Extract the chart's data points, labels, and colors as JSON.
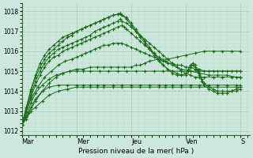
{
  "title": "",
  "xlabel": "Pression niveau de la mer( hPa )",
  "ylim": [
    1011.8,
    1018.4
  ],
  "xlim": [
    0,
    100
  ],
  "yticks": [
    1012,
    1013,
    1014,
    1015,
    1016,
    1017,
    1018
  ],
  "xtick_positions": [
    0,
    24,
    48,
    72,
    96
  ],
  "xtick_labels": [
    "Mar",
    "Mer",
    "Jeu",
    "Ven",
    "S"
  ],
  "bg_color": "#cce8dc",
  "grid_color_major": "#aaccb8",
  "grid_color_minor": "#bdd8c8",
  "line_color": "#1a6b1a",
  "series": [
    {
      "x": [
        0,
        2,
        4,
        6,
        9,
        12,
        16,
        20,
        24,
        27,
        30,
        33,
        36,
        40,
        44,
        48,
        52,
        56,
        60,
        63,
        66,
        70,
        74,
        78,
        82,
        86,
        90,
        94,
        96
      ],
      "y": [
        1012.3,
        1012.6,
        1013.0,
        1013.2,
        1013.5,
        1013.8,
        1014.0,
        1014.1,
        1014.2,
        1014.2,
        1014.2,
        1014.2,
        1014.2,
        1014.2,
        1014.2,
        1014.2,
        1014.2,
        1014.2,
        1014.2,
        1014.2,
        1014.2,
        1014.2,
        1014.2,
        1014.2,
        1014.2,
        1014.2,
        1014.2,
        1014.2,
        1014.2
      ]
    },
    {
      "x": [
        0,
        2,
        4,
        6,
        9,
        12,
        16,
        20,
        24,
        27,
        30,
        33,
        36,
        40,
        44,
        48,
        52,
        56,
        60,
        63,
        66,
        70,
        74,
        78,
        82,
        86,
        90,
        94,
        96
      ],
      "y": [
        1012.3,
        1012.7,
        1013.2,
        1013.6,
        1014.0,
        1014.2,
        1014.3,
        1014.3,
        1014.3,
        1014.3,
        1014.3,
        1014.3,
        1014.3,
        1014.3,
        1014.3,
        1014.3,
        1014.3,
        1014.3,
        1014.3,
        1014.3,
        1014.3,
        1014.3,
        1014.3,
        1014.3,
        1014.3,
        1014.3,
        1014.3,
        1014.3,
        1014.3
      ]
    },
    {
      "x": [
        0,
        2,
        4,
        6,
        9,
        12,
        15,
        18,
        21,
        24,
        27,
        30,
        34,
        38,
        42,
        46,
        50,
        54,
        58,
        62,
        66,
        70,
        74,
        78,
        82,
        86,
        90,
        94,
        96
      ],
      "y": [
        1012.3,
        1012.8,
        1013.4,
        1013.9,
        1014.3,
        1014.6,
        1014.8,
        1014.9,
        1015.0,
        1015.0,
        1015.0,
        1015.0,
        1015.0,
        1015.0,
        1015.0,
        1015.0,
        1015.0,
        1015.0,
        1015.0,
        1015.0,
        1015.0,
        1015.0,
        1015.0,
        1015.0,
        1015.0,
        1015.0,
        1015.0,
        1015.0,
        1015.0
      ]
    },
    {
      "x": [
        0,
        3,
        6,
        9,
        12,
        15,
        18,
        21,
        24,
        27,
        30,
        33,
        36,
        39,
        42,
        45,
        48,
        50,
        52,
        54,
        56,
        60,
        64,
        68,
        72,
        76,
        80,
        84,
        88,
        92,
        96
      ],
      "y": [
        1012.3,
        1012.9,
        1013.5,
        1014.0,
        1014.4,
        1014.7,
        1014.9,
        1015.0,
        1015.1,
        1015.1,
        1015.2,
        1015.2,
        1015.2,
        1015.2,
        1015.2,
        1015.2,
        1015.2,
        1015.3,
        1015.3,
        1015.4,
        1015.5,
        1015.6,
        1015.6,
        1015.7,
        1015.8,
        1015.9,
        1016.0,
        1016.0,
        1016.0,
        1016.0,
        1016.0
      ]
    },
    {
      "x": [
        0,
        2,
        4,
        7,
        10,
        13,
        16,
        19,
        22,
        24,
        26,
        28,
        30,
        32,
        34,
        36,
        38,
        40,
        42,
        44,
        46,
        48,
        50,
        52,
        54,
        56,
        58,
        60,
        62,
        64,
        66,
        68,
        70,
        72,
        74,
        76,
        78,
        80,
        84,
        88,
        92,
        96
      ],
      "y": [
        1012.3,
        1013.0,
        1013.6,
        1014.2,
        1014.7,
        1015.0,
        1015.3,
        1015.5,
        1015.6,
        1015.7,
        1015.8,
        1015.9,
        1016.0,
        1016.1,
        1016.2,
        1016.3,
        1016.3,
        1016.4,
        1016.4,
        1016.4,
        1016.3,
        1016.2,
        1016.1,
        1016.0,
        1015.9,
        1015.8,
        1015.7,
        1015.6,
        1015.5,
        1015.4,
        1015.4,
        1015.3,
        1015.3,
        1015.2,
        1015.2,
        1015.1,
        1015.1,
        1015.0,
        1015.0,
        1015.0,
        1015.0,
        1015.0
      ]
    },
    {
      "x": [
        0,
        2,
        4,
        6,
        8,
        10,
        12,
        14,
        16,
        18,
        20,
        22,
        24,
        26,
        28,
        30,
        32,
        34,
        36,
        38,
        40,
        42,
        44,
        45,
        46,
        48,
        50,
        52,
        54,
        56,
        58,
        60,
        63,
        66,
        70,
        74,
        78,
        82,
        86,
        90,
        94,
        96
      ],
      "y": [
        1012.3,
        1013.0,
        1013.7,
        1014.3,
        1014.8,
        1015.2,
        1015.5,
        1015.7,
        1015.8,
        1016.0,
        1016.1,
        1016.2,
        1016.3,
        1016.4,
        1016.5,
        1016.6,
        1016.7,
        1016.8,
        1016.9,
        1017.0,
        1017.1,
        1017.2,
        1017.3,
        1017.2,
        1017.1,
        1016.9,
        1016.7,
        1016.5,
        1016.3,
        1016.1,
        1015.9,
        1015.7,
        1015.5,
        1015.3,
        1015.1,
        1015.0,
        1014.9,
        1014.8,
        1014.8,
        1014.8,
        1014.7,
        1014.7
      ]
    },
    {
      "x": [
        0,
        2,
        4,
        6,
        8,
        10,
        12,
        14,
        16,
        18,
        20,
        22,
        24,
        26,
        28,
        30,
        32,
        34,
        36,
        38,
        40,
        42,
        43,
        44,
        46,
        48,
        50,
        52,
        54,
        56,
        58,
        60,
        62,
        64,
        66,
        68,
        70,
        72,
        74,
        76,
        78,
        80,
        84,
        88,
        92,
        96
      ],
      "y": [
        1012.3,
        1013.1,
        1013.8,
        1014.5,
        1015.0,
        1015.4,
        1015.7,
        1015.9,
        1016.1,
        1016.2,
        1016.3,
        1016.4,
        1016.5,
        1016.6,
        1016.7,
        1016.8,
        1017.0,
        1017.1,
        1017.2,
        1017.3,
        1017.4,
        1017.5,
        1017.6,
        1017.5,
        1017.4,
        1017.2,
        1017.0,
        1016.8,
        1016.6,
        1016.4,
        1016.2,
        1016.0,
        1015.8,
        1015.6,
        1015.4,
        1015.2,
        1015.0,
        1014.9,
        1014.8,
        1014.7,
        1014.7,
        1014.7,
        1014.7,
        1014.7,
        1014.7,
        1014.7
      ]
    },
    {
      "x": [
        0,
        2,
        4,
        6,
        8,
        10,
        12,
        14,
        16,
        18,
        20,
        22,
        24,
        26,
        28,
        30,
        32,
        34,
        36,
        38,
        40,
        42,
        43,
        44,
        46,
        48,
        50,
        52,
        54,
        56,
        58,
        60,
        62,
        64,
        66,
        68,
        70,
        72,
        73,
        74,
        75,
        76,
        77,
        78,
        79,
        80,
        82,
        84,
        86,
        88,
        90,
        92,
        94,
        96
      ],
      "y": [
        1012.3,
        1013.2,
        1014.0,
        1014.7,
        1015.2,
        1015.6,
        1015.9,
        1016.1,
        1016.3,
        1016.5,
        1016.7,
        1016.8,
        1017.0,
        1017.1,
        1017.2,
        1017.3,
        1017.4,
        1017.5,
        1017.6,
        1017.7,
        1017.8,
        1017.85,
        1017.9,
        1017.8,
        1017.6,
        1017.3,
        1017.0,
        1016.7,
        1016.4,
        1016.1,
        1015.8,
        1015.5,
        1015.3,
        1015.1,
        1015.0,
        1014.9,
        1014.8,
        1014.8,
        1015.0,
        1015.2,
        1015.3,
        1015.2,
        1015.0,
        1014.8,
        1014.5,
        1014.3,
        1014.1,
        1014.0,
        1013.9,
        1013.9,
        1013.9,
        1014.0,
        1014.0,
        1014.1
      ]
    },
    {
      "x": [
        0,
        2,
        4,
        6,
        8,
        10,
        12,
        14,
        16,
        18,
        20,
        22,
        24,
        26,
        28,
        30,
        32,
        34,
        36,
        38,
        40,
        42,
        43,
        44,
        46,
        48,
        50,
        52,
        54,
        56,
        58,
        60,
        62,
        64,
        66,
        68,
        70,
        72,
        73,
        74,
        75,
        76,
        77,
        78,
        79,
        80,
        82,
        84,
        86,
        88,
        90,
        92,
        94,
        96
      ],
      "y": [
        1012.3,
        1013.2,
        1014.1,
        1014.8,
        1015.4,
        1015.8,
        1016.1,
        1016.3,
        1016.5,
        1016.7,
        1016.8,
        1016.9,
        1017.0,
        1017.1,
        1017.2,
        1017.3,
        1017.4,
        1017.5,
        1017.6,
        1017.7,
        1017.8,
        1017.85,
        1017.9,
        1017.8,
        1017.7,
        1017.4,
        1017.1,
        1016.8,
        1016.5,
        1016.2,
        1015.9,
        1015.6,
        1015.3,
        1015.1,
        1014.9,
        1014.8,
        1014.8,
        1014.9,
        1015.1,
        1015.3,
        1015.4,
        1015.3,
        1015.1,
        1014.9,
        1014.6,
        1014.4,
        1014.2,
        1014.1,
        1014.0,
        1014.0,
        1014.0,
        1014.0,
        1014.1,
        1014.2
      ]
    }
  ]
}
